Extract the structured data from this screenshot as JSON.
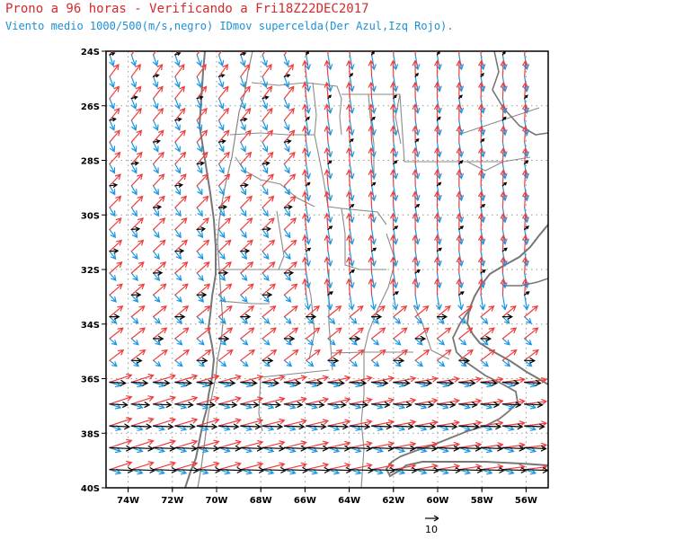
{
  "header": {
    "title": "Prono a 96 horas - Verificando a Fri18Z22DEC2017",
    "subtitle": "Viento medio 1000/500(m/s,negro) IDmov supercelda(Der Azul,Izq Rojo)."
  },
  "reference_vector_label": "10",
  "colors": {
    "mean_wind": "#000000",
    "right_mover": "#1c96e0",
    "left_mover": "#f03c3c",
    "coastline": "#777777",
    "grid": "#999999"
  },
  "chart_data": {
    "type": "vector-field",
    "title": "Prono a 96 horas - Verificando a Fri18Z22DEC2017",
    "subtitle": "Viento medio 1000/500(m/s,negro) IDmov supercelda(Der Azul,Izq Rojo).",
    "xlim": [
      -75,
      -55
    ],
    "ylim": [
      -40,
      -24
    ],
    "x_ticks": [
      -74,
      -72,
      -70,
      -68,
      -66,
      -64,
      -62,
      -60,
      -58,
      -56
    ],
    "x_tick_labels": [
      "74W",
      "72W",
      "70W",
      "68W",
      "66W",
      "64W",
      "62W",
      "60W",
      "58W",
      "56W"
    ],
    "y_ticks": [
      -24,
      -26,
      -28,
      -30,
      -32,
      -34,
      -36,
      -38,
      -40
    ],
    "y_tick_labels": [
      "24S",
      "26S",
      "28S",
      "30S",
      "32S",
      "34S",
      "36S",
      "38S",
      "40S"
    ],
    "grid": true,
    "grid_style": "dotted",
    "reference_vector": 10,
    "series": [
      {
        "name": "Viento medio 1000/500",
        "color": "#000000"
      },
      {
        "name": "IDmov supercelda Der",
        "color": "#1c96e0"
      },
      {
        "name": "IDmov supercelda Izq",
        "color": "#f03c3c"
      }
    ]
  }
}
